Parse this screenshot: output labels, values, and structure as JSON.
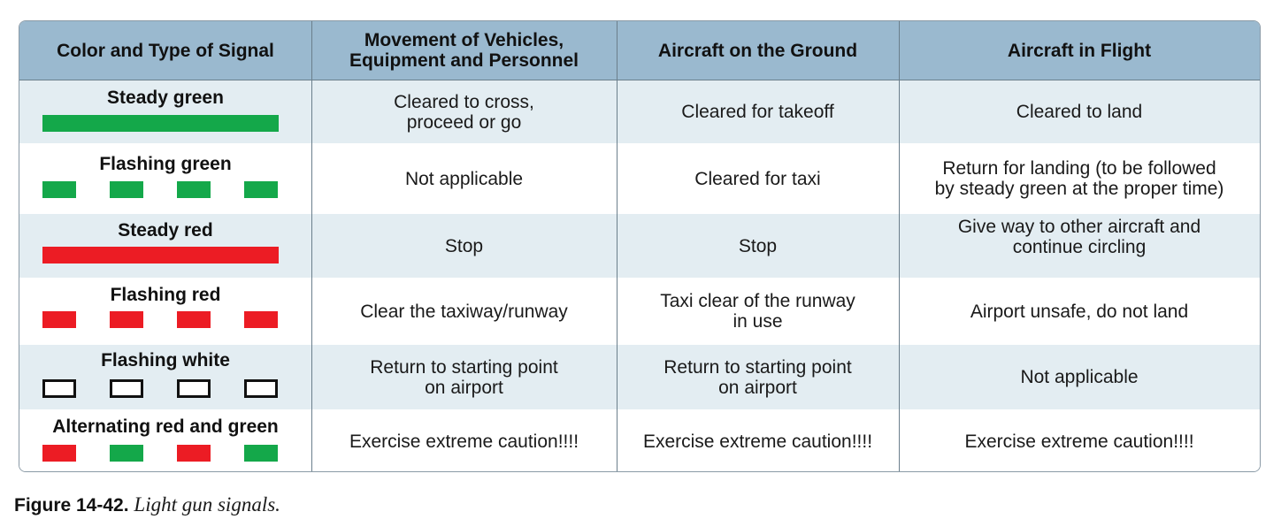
{
  "table": {
    "headers": [
      "Color and Type of Signal",
      "Movement of Vehicles,\nEquipment and Personnel",
      "Aircraft on the Ground",
      "Aircraft in Flight"
    ],
    "rows": [
      {
        "signal": "Steady green",
        "pattern": "steady",
        "color": "#14a84a",
        "vehicles": "Cleared to cross,\nproceed or go",
        "ground": "Cleared for takeoff",
        "flight": "Cleared to land"
      },
      {
        "signal": "Flashing green",
        "pattern": "flashing",
        "color": "#14a84a",
        "vehicles": "Not applicable",
        "ground": "Cleared for taxi",
        "flight": "Return for landing (to be followed\nby steady green at the proper time)"
      },
      {
        "signal": "Steady red",
        "pattern": "steady",
        "color": "#ec1c24",
        "vehicles": "Stop",
        "ground": "Stop",
        "flight": "Give way to other aircraft and\ncontinue circling"
      },
      {
        "signal": "Flashing red",
        "pattern": "flashing",
        "color": "#ec1c24",
        "vehicles": "Clear the taxiway/runway",
        "ground": "Taxi clear of the runway\nin use",
        "flight": "Airport unsafe, do not land"
      },
      {
        "signal": "Flashing white",
        "pattern": "flashing",
        "color": "#ffffff",
        "vehicles": "Return to starting point\non airport",
        "ground": "Return to starting point\non airport",
        "flight": "Not applicable"
      },
      {
        "signal": "Alternating red and green",
        "pattern": "alternating",
        "color": "#ec1c24",
        "color_alt": "#14a84a",
        "vehicles": "Exercise extreme caution!!!!",
        "ground": "Exercise extreme caution!!!!",
        "flight": "Exercise extreme caution!!!!"
      }
    ]
  },
  "colors": {
    "header_bg": "#9ab9cf",
    "shaded_row": "#e3edf2",
    "border": "#8a9aa6"
  },
  "caption": {
    "figure": "Figure 14-42.",
    "text": "Light gun signals."
  }
}
